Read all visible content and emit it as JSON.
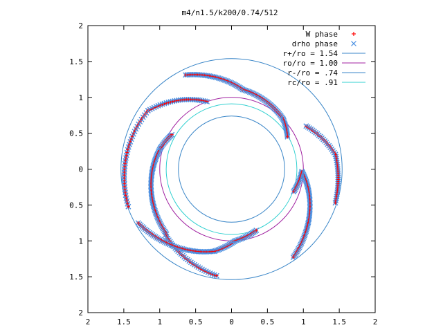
{
  "chart_data": {
    "type": "scatter",
    "title": "m4/n1.5/k200/0.74/512",
    "xlabel": "",
    "ylabel": "",
    "xlim": [
      -2,
      2
    ],
    "ylim": [
      -2,
      2
    ],
    "x_ticks": [
      "2",
      "1.5",
      "1",
      "0.5",
      "0",
      "0.5",
      "1",
      "1.5",
      "2"
    ],
    "y_ticks": [
      "2",
      "1.5",
      "1",
      "0.5",
      "0",
      "0.5",
      "1",
      "1.5",
      "2"
    ],
    "x_tick_values": [
      -2,
      -1.5,
      -1,
      -0.5,
      0,
      0.5,
      1,
      1.5,
      2
    ],
    "y_tick_values": [
      2,
      1.5,
      1,
      0.5,
      0,
      -0.5,
      -1,
      -1.5,
      -2
    ],
    "grid": false,
    "legend_position": "top-right",
    "legend": [
      {
        "label": "W phase",
        "style": "plus",
        "color": "#ff0000"
      },
      {
        "label": "drho phase",
        "style": "cross",
        "color": "#4a90e2"
      },
      {
        "label": "r+/ro = 1.54",
        "style": "line",
        "color": "#3a86c8"
      },
      {
        "label": "ro/ro = 1.00",
        "style": "line",
        "color": "#a020a0"
      },
      {
        "label": "r-/ro = .74",
        "style": "line",
        "color": "#3a86c8"
      },
      {
        "label": "rc/ro = .91",
        "style": "line",
        "color": "#30d0d0"
      }
    ],
    "circles": [
      {
        "name": "r+/ro = 1.54",
        "r": 1.54,
        "color": "#3a86c8"
      },
      {
        "name": "ro/ro = 1.00",
        "r": 1.0,
        "color": "#a020a0"
      },
      {
        "name": "r-/ro = .74",
        "r": 0.74,
        "color": "#3a86c8"
      },
      {
        "name": "rc/ro = .91",
        "r": 0.91,
        "color": "#30d0d0"
      }
    ],
    "arms": [
      {
        "r0": 1.0,
        "r1": 1.12,
        "th0": 44,
        "th1": 82,
        "lobe_r": 0.9,
        "lobe_th0": 44,
        "lobe_th1": 30,
        "spacing": 0.02
      },
      {
        "r0": 1.12,
        "r1": 1.46,
        "th0": 82,
        "th1": 116,
        "spacing": 0.022
      },
      {
        "r0": 1.03,
        "r1": 1.28,
        "th0": 163,
        "th1": 225,
        "lobe_r": 0.96,
        "lobe_th0": 163,
        "lobe_th1": 150,
        "spacing": 0.02
      },
      {
        "r0": 1.3,
        "r1": 1.5,
        "th0": 225,
        "th1": 262,
        "spacing": 0.03
      },
      {
        "r0": 1.0,
        "r1": 1.17,
        "th0": 273,
        "th1": 258,
        "lobe_r": 0.92,
        "lobe_th0": 273,
        "lobe_th1": 292,
        "spacing": 0.02
      },
      {
        "r0": 1.17,
        "r1": 1.5,
        "th0": 258,
        "th1": 210,
        "spacing": 0.024
      },
      {
        "r0": 0.98,
        "r1": 1.5,
        "th0": 358,
        "th1": 305,
        "lobe_r": 0.92,
        "lobe_th0": 358,
        "lobe_th1": 340,
        "spacing": 0.02
      },
      {
        "r0": 1.2,
        "r1": 1.46,
        "th0": 30,
        "th1": 8,
        "spacing": 0.028
      },
      {
        "r0": 1.46,
        "r1": 1.52,
        "th0": 8,
        "th1": -18,
        "spacing": 0.03
      },
      {
        "r0": 1.0,
        "r1": 1.42,
        "th0": 110,
        "th1": 145,
        "spacing": 0.028
      },
      {
        "r0": 1.42,
        "r1": 1.53,
        "th0": 145,
        "th1": 200,
        "spacing": 0.04
      }
    ]
  }
}
